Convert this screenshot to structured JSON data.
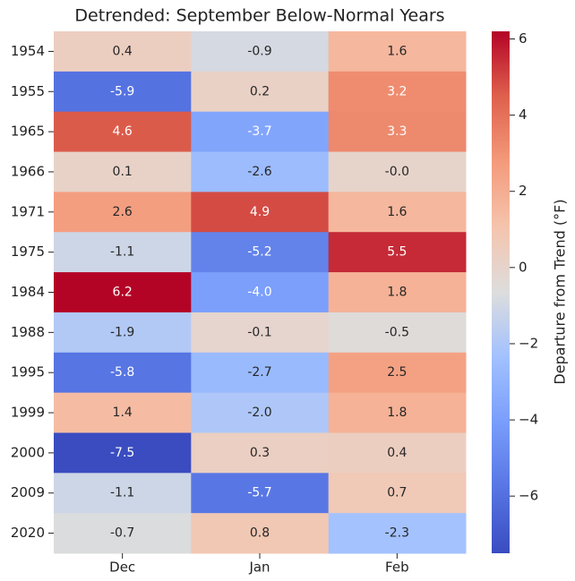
{
  "chart_data": {
    "type": "heatmap",
    "title": "Detrended: September Below-Normal Years",
    "colorbar_label": "Departure from Trend (°F)",
    "colormap": "coolwarm",
    "x": [
      "Dec",
      "Jan",
      "Feb"
    ],
    "y": [
      "1954",
      "1955",
      "1965",
      "1966",
      "1971",
      "1975",
      "1984",
      "1988",
      "1995",
      "1999",
      "2000",
      "2009",
      "2020"
    ],
    "z": [
      [
        0.4,
        -0.9,
        1.6
      ],
      [
        -5.9,
        0.2,
        3.2
      ],
      [
        4.6,
        -3.7,
        3.3
      ],
      [
        0.1,
        -2.6,
        -0.0
      ],
      [
        2.6,
        4.9,
        1.6
      ],
      [
        -1.1,
        -5.2,
        5.5
      ],
      [
        6.2,
        -4.0,
        1.8
      ],
      [
        -1.9,
        -0.1,
        -0.5
      ],
      [
        -5.8,
        -2.7,
        2.5
      ],
      [
        1.4,
        -2.0,
        1.8
      ],
      [
        -7.5,
        0.3,
        0.4
      ],
      [
        -1.1,
        -5.7,
        0.7
      ],
      [
        -0.7,
        0.8,
        -2.3
      ]
    ],
    "value_labels": [
      [
        "0.4",
        "-0.9",
        "1.6"
      ],
      [
        "-5.9",
        "0.2",
        "3.2"
      ],
      [
        "4.6",
        "-3.7",
        "3.3"
      ],
      [
        "0.1",
        "-2.6",
        "-0.0"
      ],
      [
        "2.6",
        "4.9",
        "1.6"
      ],
      [
        "-1.1",
        "-5.2",
        "5.5"
      ],
      [
        "6.2",
        "-4.0",
        "1.8"
      ],
      [
        "-1.9",
        "-0.1",
        "-0.5"
      ],
      [
        "-5.8",
        "-2.7",
        "2.5"
      ],
      [
        "1.4",
        "-2.0",
        "1.8"
      ],
      [
        "-7.5",
        "0.3",
        "0.4"
      ],
      [
        "-1.1",
        "-5.7",
        "0.7"
      ],
      [
        "-0.7",
        "0.8",
        "-2.3"
      ]
    ],
    "zlim": [
      -7.5,
      6.2
    ],
    "zticks": [
      {
        "value": -6,
        "label": "−6"
      },
      {
        "value": -4,
        "label": "−4"
      },
      {
        "value": -2,
        "label": "−2"
      },
      0,
      2,
      4,
      6
    ]
  }
}
